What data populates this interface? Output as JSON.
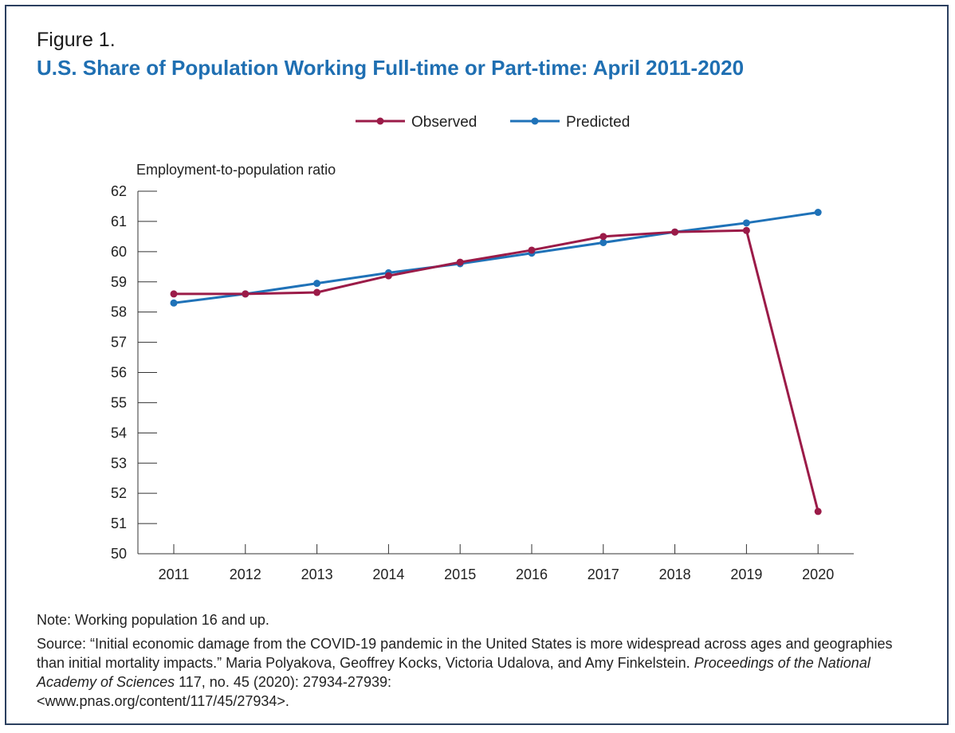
{
  "figure": {
    "label": "Figure 1.",
    "title": "U.S. Share of Population Working Full-time or Part-time: April 2011-2020"
  },
  "colors": {
    "observed": "#9b1b48",
    "predicted": "#1f72b8",
    "title": "#1f6fb2",
    "frame": "#2b3f5f"
  },
  "chart_data": {
    "type": "line",
    "title": "U.S. Share of Population Working Full-time or Part-time: April 2011-2020",
    "ylabel": "Employment-to-population ratio",
    "xlabel": "",
    "x": [
      "2011",
      "2012",
      "2013",
      "2014",
      "2015",
      "2016",
      "2017",
      "2018",
      "2019",
      "2020"
    ],
    "ylim": [
      50,
      62
    ],
    "yticks": [
      50,
      51,
      52,
      53,
      54,
      55,
      56,
      57,
      58,
      59,
      60,
      61,
      62
    ],
    "legend_position": "top-center",
    "grid": false,
    "series": [
      {
        "name": "Observed",
        "values": [
          58.6,
          58.6,
          58.65,
          59.2,
          59.65,
          60.05,
          60.5,
          60.65,
          60.7,
          51.4
        ]
      },
      {
        "name": "Predicted",
        "values": [
          58.3,
          58.6,
          58.95,
          59.3,
          59.6,
          59.95,
          60.3,
          60.65,
          60.95,
          61.3
        ]
      }
    ]
  },
  "notes": {
    "note": "Note: Working population 16 and up.",
    "source_prefix": "Source: “Initial economic damage from the COVID-19 pandemic in the United States is more widespread across ages and geographies than initial mortality impacts.” Maria Polyakova, Geoffrey Kocks, Victoria Udalova, and Amy Finkelstein. ",
    "journal": "Proceedings of the National Academy of Sciences",
    "source_suffix": " 117, no. 45 (2020): 27934-27939:",
    "url": "<www.pnas.org/content/117/45/27934>."
  }
}
